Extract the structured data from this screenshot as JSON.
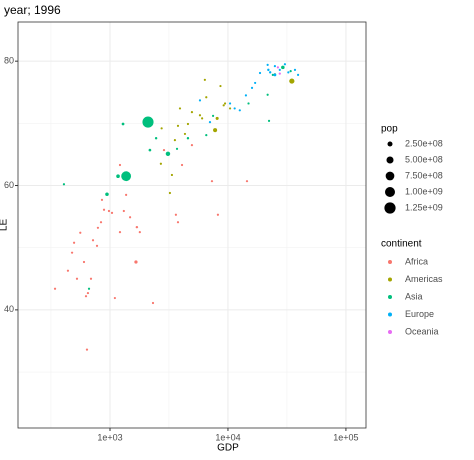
{
  "chart_data": {
    "type": "scatter",
    "title": "year; 1996",
    "x_label": "GDP",
    "y_label": "LE",
    "xscale": "log",
    "xlim": [
      166,
      148000
    ],
    "ylim": [
      21,
      86.3
    ],
    "xticks": [
      {
        "value": 1000,
        "label": "1e+03"
      },
      {
        "value": 10000,
        "label": "1e+04"
      },
      {
        "value": 100000,
        "label": "1e+05"
      }
    ],
    "xminor_ticks": [
      316,
      3162,
      31623
    ],
    "yticks": [
      40,
      60,
      80
    ],
    "yminor_ticks": [
      30,
      50,
      70
    ],
    "grid": true,
    "size_legend": {
      "title": "pop",
      "breaks": [
        {
          "value": 250000000,
          "label": "2.50e+08"
        },
        {
          "value": 500000000,
          "label": "5.00e+08"
        },
        {
          "value": 750000000,
          "label": "7.50e+08"
        },
        {
          "value": 1000000000,
          "label": "1.00e+09"
        },
        {
          "value": 1250000000,
          "label": "1.25e+09"
        }
      ]
    },
    "color_legend_title": "continent",
    "series": [
      {
        "name": "Africa",
        "color": "#F8766D",
        "x": [
          342,
          477,
          496,
          440,
          602,
          626,
          638,
          718,
          776,
          790,
          839,
          890,
          980,
          1040,
          1100,
          1215,
          1310,
          1480,
          1660,
          2315,
          1690,
          1790,
          3620,
          3770,
          2870,
          4080,
          7320,
          8220,
          14500,
          4950,
          1215,
          1370,
          855,
          650,
          690,
          525,
          560
        ],
        "y": [
          43.4,
          49.2,
          50.8,
          46.3,
          47.7,
          42.2,
          33.6,
          51.2,
          50.3,
          53.2,
          54.1,
          56.1,
          55.9,
          55.6,
          41.9,
          52.5,
          55.9,
          54.9,
          47.7,
          41.1,
          53.3,
          52.5,
          55.3,
          54.1,
          65.7,
          63.3,
          60.7,
          55.3,
          60.7,
          66.5,
          63.3,
          58.5,
          57.7,
          42.7,
          45,
          45,
          52.4
        ],
        "sizes": [
          15000000,
          10000000,
          8000000,
          12000000,
          20000000,
          9000000,
          5000000,
          25000000,
          14000000,
          11000000,
          30000000,
          6000000,
          8000000,
          16000000,
          4000000,
          13000000,
          28000000,
          9000000,
          105000000,
          3000000,
          60000000,
          12000000,
          4000000,
          2000000,
          27000000,
          5000000,
          38000000,
          2000000,
          1000000,
          10000000,
          3000000,
          7000000,
          5000000,
          10000000,
          4000000,
          6000000,
          3000000
        ]
      },
      {
        "name": "Americas",
        "color": "#A3A500",
        "x": [
          3220,
          3350,
          3550,
          3770,
          4320,
          4950,
          5790,
          6370,
          6550,
          7780,
          8100,
          9200,
          9450,
          10420,
          8640,
          4580,
          6040,
          34800,
          25000,
          2700,
          3920,
          2740
        ],
        "y": [
          58.8,
          61.7,
          67.3,
          69.6,
          68.3,
          71.8,
          71.3,
          77,
          74.2,
          68.9,
          70.8,
          72.9,
          73.2,
          72.4,
          76,
          69.9,
          70.8,
          76.8,
          77.9,
          63.5,
          72.4,
          69.2
        ],
        "sizes": [
          7500000,
          7900000,
          6000000,
          11000000,
          5500000,
          12000000,
          38000000,
          3500000,
          2500000,
          165000000,
          95000000,
          14500000,
          35000000,
          22000000,
          3200000,
          5300000,
          24000000,
          270000000,
          30000000,
          4700000,
          2600000,
          10000000
        ]
      },
      {
        "name": "Asia",
        "color": "#00BF7D",
        "x": [
          407,
          664,
          943,
          1370,
          2100,
          1290,
          1170,
          3100,
          3700,
          4580,
          6550,
          2180,
          2460,
          7480,
          14940,
          22300,
          21700,
          29200,
          24000,
          34000
        ],
        "y": [
          60.2,
          43.4,
          58.6,
          61.5,
          70.2,
          69.9,
          61.5,
          65.1,
          65.9,
          67.6,
          68.1,
          65.7,
          67.6,
          71.2,
          73.2,
          70.4,
          74.6,
          79,
          77.8,
          78.4
        ],
        "sizes": [
          43000000,
          20000000,
          125000000,
          950000000,
          1230000000,
          75000000,
          130000000,
          200000000,
          20000000,
          60000000,
          15000000,
          70000000,
          60000000,
          20000000,
          45000000,
          2000000,
          21000000,
          125000000,
          6000000,
          3500000
        ]
      },
      {
        "name": "Europe",
        "color": "#00B0F6",
        "x": [
          5790,
          7040,
          10420,
          14200,
          16000,
          18700,
          22000,
          22800,
          25000,
          27500,
          30400,
          32500,
          37000,
          25000,
          21700,
          12600,
          11400,
          17000,
          39300
        ],
        "y": [
          73.7,
          70.2,
          73.2,
          74.5,
          75.7,
          78.1,
          78.6,
          78.2,
          79.2,
          78.6,
          79.5,
          78.2,
          78.6,
          77.8,
          79.4,
          72.1,
          72.4,
          76.5,
          77.8
        ],
        "sizes": [
          3500000,
          8000000,
          39000000,
          10000000,
          10500000,
          40000000,
          58000000,
          57000000,
          15000000,
          9000000,
          4400000,
          7000000,
          5300000,
          82000000,
          10000000,
          10300000,
          22500000,
          2000000,
          4000000
        ]
      },
      {
        "name": "Oceania",
        "color": "#E76BF3",
        "x": [
          27500,
          26500
        ],
        "y": [
          78,
          79
        ],
        "sizes": [
          3700000,
          18500000
        ]
      }
    ]
  }
}
